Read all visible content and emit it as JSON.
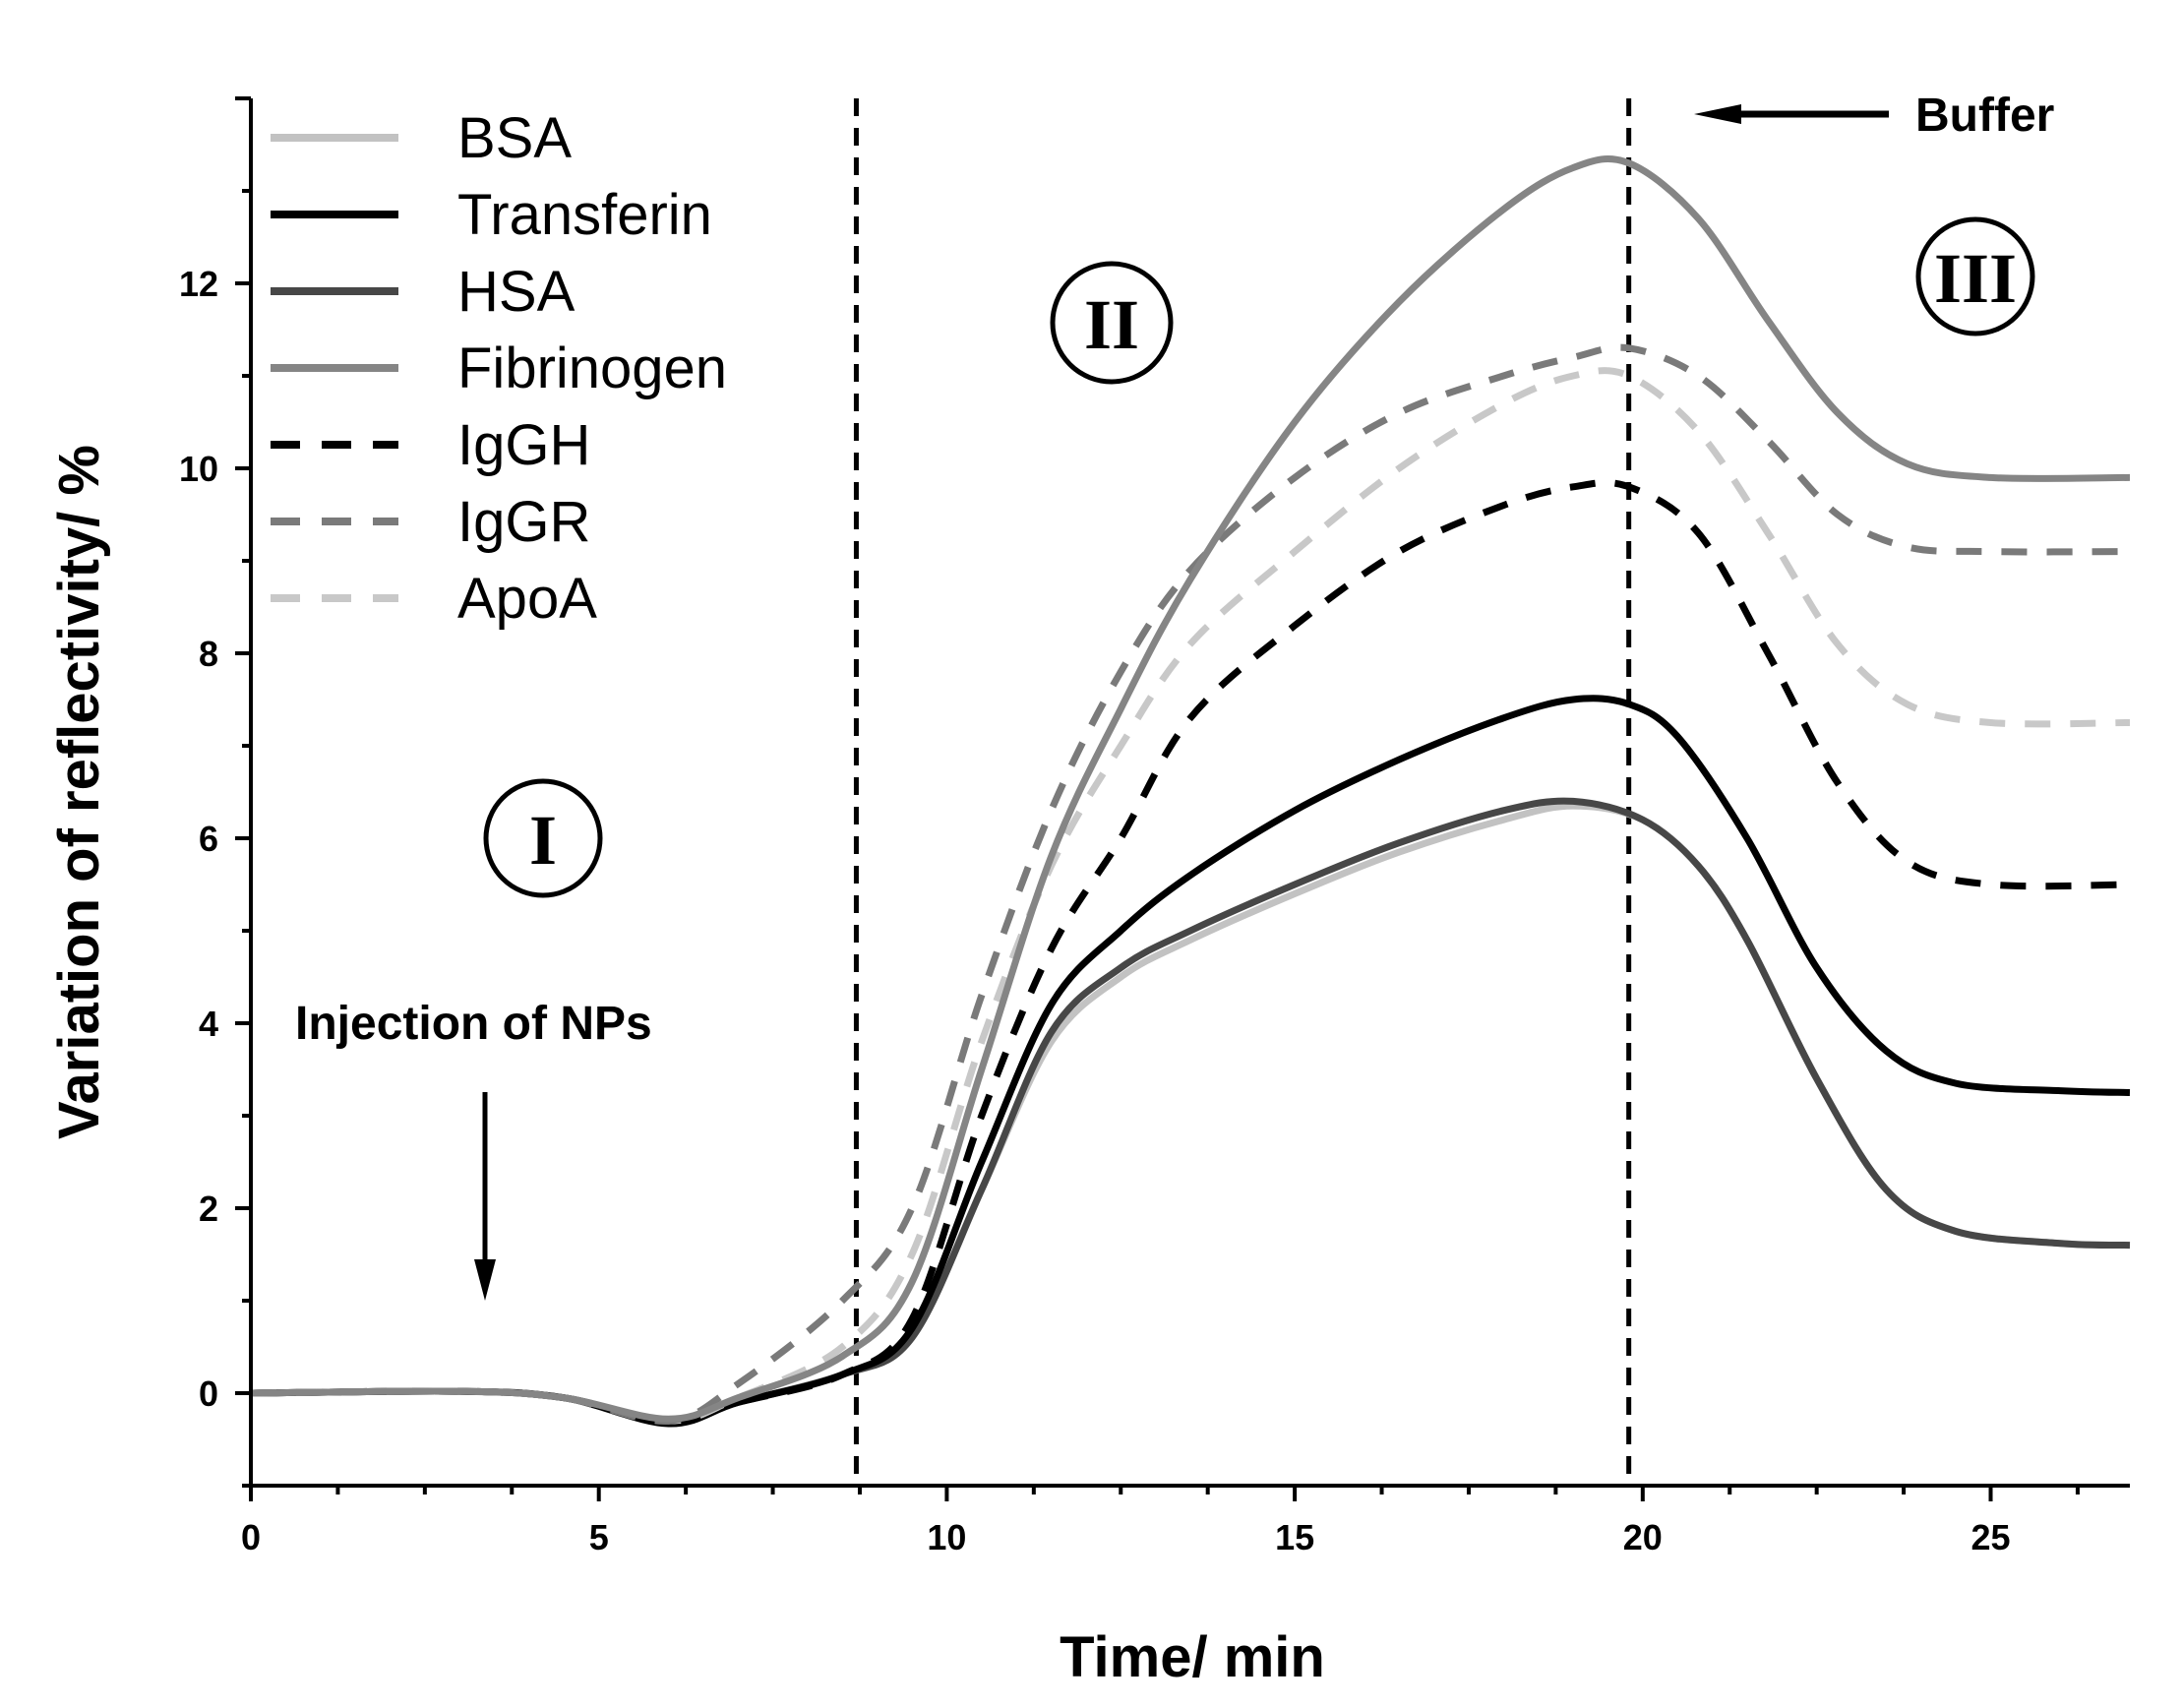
{
  "chart_data": {
    "type": "line",
    "title": "",
    "xlabel": "Time/ min",
    "ylabel": "Variation of reflectivity/ %",
    "xlim": [
      0,
      27
    ],
    "ylim": [
      -1,
      14
    ],
    "xticks": [
      0,
      5,
      10,
      15,
      20,
      25
    ],
    "yticks": [
      0,
      2,
      4,
      6,
      8,
      10,
      12
    ],
    "legend_position": "top-left",
    "vlines": [
      8.7,
      19.8
    ],
    "annotations": {
      "injection": "Injection of NPs",
      "buffer": "Buffer",
      "region_1": "I",
      "region_2": "II",
      "region_3": "III"
    },
    "series": [
      {
        "name": "BSA",
        "color": "#c2c2c2",
        "style": "solid",
        "points": [
          [
            0,
            0
          ],
          [
            3,
            0.02
          ],
          [
            4.5,
            -0.05
          ],
          [
            6,
            -0.3
          ],
          [
            7,
            -0.1
          ],
          [
            8.5,
            0.2
          ],
          [
            9.5,
            0.6
          ],
          [
            10.5,
            2.2
          ],
          [
            11.5,
            3.8
          ],
          [
            12.5,
            4.5
          ],
          [
            13.5,
            4.9
          ],
          [
            15,
            5.4
          ],
          [
            16.5,
            5.85
          ],
          [
            18,
            6.2
          ],
          [
            19,
            6.35
          ],
          [
            20,
            6.2
          ],
          [
            20.8,
            5.7
          ],
          [
            21.5,
            4.9
          ],
          [
            22.5,
            3.4
          ],
          [
            23.5,
            2.2
          ],
          [
            24.5,
            1.75
          ],
          [
            26,
            1.62
          ],
          [
            27,
            1.6
          ]
        ]
      },
      {
        "name": "Transferin",
        "color": "#000000",
        "style": "solid",
        "points": [
          [
            0,
            0
          ],
          [
            3,
            0.02
          ],
          [
            4.5,
            -0.05
          ],
          [
            6,
            -0.33
          ],
          [
            7,
            -0.1
          ],
          [
            8.5,
            0.2
          ],
          [
            9.5,
            0.7
          ],
          [
            10.5,
            2.5
          ],
          [
            11.5,
            4.2
          ],
          [
            12.5,
            5.0
          ],
          [
            13.5,
            5.6
          ],
          [
            15,
            6.3
          ],
          [
            16.5,
            6.85
          ],
          [
            18,
            7.3
          ],
          [
            19,
            7.5
          ],
          [
            19.8,
            7.45
          ],
          [
            20.5,
            7.1
          ],
          [
            21.5,
            6.0
          ],
          [
            22.5,
            4.6
          ],
          [
            23.5,
            3.7
          ],
          [
            24.5,
            3.35
          ],
          [
            26,
            3.27
          ],
          [
            27,
            3.25
          ]
        ]
      },
      {
        "name": "HSA",
        "color": "#474747",
        "style": "solid",
        "points": [
          [
            0,
            0
          ],
          [
            3,
            0.02
          ],
          [
            4.5,
            -0.05
          ],
          [
            6,
            -0.3
          ],
          [
            7,
            -0.1
          ],
          [
            8.5,
            0.2
          ],
          [
            9.5,
            0.6
          ],
          [
            10.5,
            2.2
          ],
          [
            11.5,
            3.9
          ],
          [
            12.5,
            4.6
          ],
          [
            13.5,
            5.0
          ],
          [
            15,
            5.5
          ],
          [
            16.5,
            5.95
          ],
          [
            18,
            6.3
          ],
          [
            19,
            6.4
          ],
          [
            20,
            6.2
          ],
          [
            20.8,
            5.7
          ],
          [
            21.5,
            4.9
          ],
          [
            22.5,
            3.4
          ],
          [
            23.5,
            2.2
          ],
          [
            24.5,
            1.75
          ],
          [
            26,
            1.62
          ],
          [
            27,
            1.6
          ]
        ]
      },
      {
        "name": "Fibrinogen",
        "color": "#858585",
        "style": "solid",
        "points": [
          [
            0,
            0
          ],
          [
            3,
            0.02
          ],
          [
            4.5,
            -0.05
          ],
          [
            6,
            -0.28
          ],
          [
            7,
            -0.05
          ],
          [
            8.5,
            0.4
          ],
          [
            9.5,
            1.2
          ],
          [
            10.5,
            3.5
          ],
          [
            11.5,
            5.8
          ],
          [
            12.5,
            7.4
          ],
          [
            13.5,
            8.8
          ],
          [
            15,
            10.5
          ],
          [
            16.5,
            11.8
          ],
          [
            18,
            12.8
          ],
          [
            19,
            13.25
          ],
          [
            19.8,
            13.3
          ],
          [
            20.8,
            12.7
          ],
          [
            21.8,
            11.6
          ],
          [
            22.8,
            10.6
          ],
          [
            23.8,
            10.05
          ],
          [
            25,
            9.9
          ],
          [
            27,
            9.9
          ]
        ]
      },
      {
        "name": "IgGH",
        "color": "#000000",
        "style": "dashed",
        "points": [
          [
            0,
            0
          ],
          [
            3,
            0.02
          ],
          [
            4.5,
            -0.05
          ],
          [
            6,
            -0.3
          ],
          [
            7,
            -0.1
          ],
          [
            8.5,
            0.2
          ],
          [
            9.5,
            0.8
          ],
          [
            10.5,
            3.0
          ],
          [
            11.5,
            4.8
          ],
          [
            12.5,
            6.0
          ],
          [
            13.5,
            7.3
          ],
          [
            15,
            8.3
          ],
          [
            16.5,
            9.1
          ],
          [
            18,
            9.6
          ],
          [
            19,
            9.8
          ],
          [
            19.8,
            9.8
          ],
          [
            20.8,
            9.3
          ],
          [
            21.8,
            8.0
          ],
          [
            22.8,
            6.6
          ],
          [
            23.8,
            5.75
          ],
          [
            25,
            5.5
          ],
          [
            27,
            5.5
          ]
        ]
      },
      {
        "name": "IgGR",
        "color": "#7a7a7a",
        "style": "dashed",
        "points": [
          [
            0,
            0
          ],
          [
            3,
            0.02
          ],
          [
            4.5,
            -0.05
          ],
          [
            6,
            -0.3
          ],
          [
            7,
            0.1
          ],
          [
            8.5,
            1.0
          ],
          [
            9.5,
            2.0
          ],
          [
            10.5,
            4.3
          ],
          [
            11.5,
            6.3
          ],
          [
            12.5,
            7.8
          ],
          [
            13.5,
            8.9
          ],
          [
            15,
            9.9
          ],
          [
            16.5,
            10.6
          ],
          [
            18,
            11.0
          ],
          [
            19,
            11.2
          ],
          [
            19.8,
            11.3
          ],
          [
            20.8,
            11.0
          ],
          [
            21.8,
            10.3
          ],
          [
            22.8,
            9.5
          ],
          [
            23.8,
            9.15
          ],
          [
            25,
            9.1
          ],
          [
            27,
            9.1
          ]
        ]
      },
      {
        "name": "ApoA",
        "color": "#c8c8c8",
        "style": "dashed",
        "points": [
          [
            0,
            0
          ],
          [
            3,
            0.02
          ],
          [
            4.5,
            -0.05
          ],
          [
            6,
            -0.3
          ],
          [
            7,
            -0.05
          ],
          [
            8.5,
            0.5
          ],
          [
            9.5,
            1.5
          ],
          [
            10.5,
            3.8
          ],
          [
            11.5,
            5.7
          ],
          [
            12.5,
            7.0
          ],
          [
            13.5,
            8.1
          ],
          [
            15,
            9.1
          ],
          [
            16.5,
            10.0
          ],
          [
            18,
            10.7
          ],
          [
            19,
            11.0
          ],
          [
            19.8,
            11.0
          ],
          [
            20.8,
            10.4
          ],
          [
            21.8,
            9.3
          ],
          [
            22.8,
            8.1
          ],
          [
            23.8,
            7.45
          ],
          [
            25,
            7.25
          ],
          [
            27,
            7.25
          ]
        ]
      }
    ]
  }
}
